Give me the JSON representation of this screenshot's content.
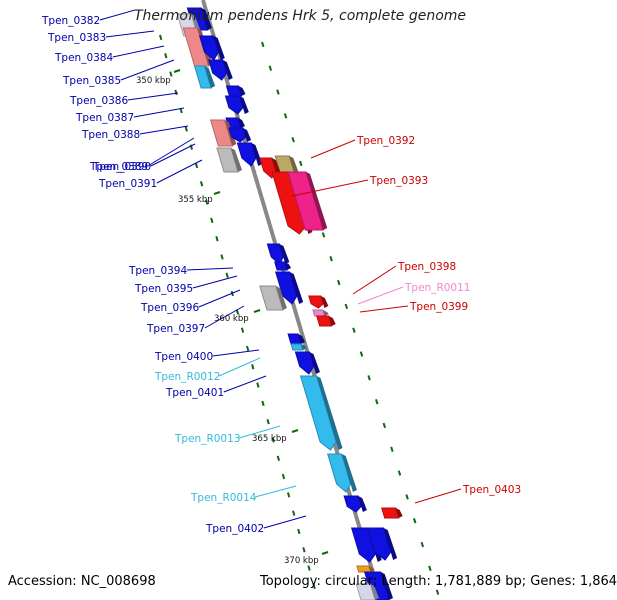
{
  "title": "Thermofilum pendens Hrk 5, complete genome",
  "footer": {
    "accession": "Accession: NC_008698",
    "stats": "Topology: circular; Length: 1,781,889 bp; Genes: 1,864"
  },
  "colors": {
    "forward_cds": "#1010e0",
    "reverse_cds": "#ee1111",
    "forward_rna": "#33bbee",
    "reverse_rna": "#ee88cc",
    "pseudo_forward": "#ee8888",
    "pseudo_reverse": "#bbbbbb",
    "backbone": "#888888",
    "tick": "#116611"
  },
  "scale_labels": [
    "350 kbp",
    "355 kbp",
    "360 kbp",
    "365 kbp",
    "370 kbp"
  ],
  "gene_labels": [
    {
      "text": "Tpen_0382",
      "color": "#0000aa"
    },
    {
      "text": "Tpen_0383",
      "color": "#0000aa"
    },
    {
      "text": "Tpen_0384",
      "color": "#0000aa"
    },
    {
      "text": "Tpen_0385",
      "color": "#0000aa"
    },
    {
      "text": "Tpen_0386",
      "color": "#0000aa"
    },
    {
      "text": "Tpen_0387",
      "color": "#0000aa"
    },
    {
      "text": "Tpen_0388",
      "color": "#0000aa"
    },
    {
      "text": "Tpen_0389",
      "color": "#0000aa"
    },
    {
      "text": "Tpen_0390",
      "color": "#0000aa"
    },
    {
      "text": "Tpen_0391",
      "color": "#0000aa"
    },
    {
      "text": "Tpen_0392",
      "color": "#cc0000"
    },
    {
      "text": "Tpen_0393",
      "color": "#cc0000"
    },
    {
      "text": "Tpen_0394",
      "color": "#0000aa"
    },
    {
      "text": "Tpen_0395",
      "color": "#0000aa"
    },
    {
      "text": "Tpen_0396",
      "color": "#0000aa"
    },
    {
      "text": "Tpen_0397",
      "color": "#0000aa"
    },
    {
      "text": "Tpen_0398",
      "color": "#cc0000"
    },
    {
      "text": "Tpen_R0011",
      "color": "#ee88cc"
    },
    {
      "text": "Tpen_0399",
      "color": "#cc0000"
    },
    {
      "text": "Tpen_0400",
      "color": "#0000aa"
    },
    {
      "text": "Tpen_R0012",
      "color": "#33bbdd"
    },
    {
      "text": "Tpen_0401",
      "color": "#0000aa"
    },
    {
      "text": "Tpen_R0013",
      "color": "#33bbdd"
    },
    {
      "text": "Tpen_0402",
      "color": "#0000aa"
    },
    {
      "text": "Tpen_0403",
      "color": "#cc0000"
    },
    {
      "text": "Tpen_R0014",
      "color": "#33bbdd"
    }
  ]
}
